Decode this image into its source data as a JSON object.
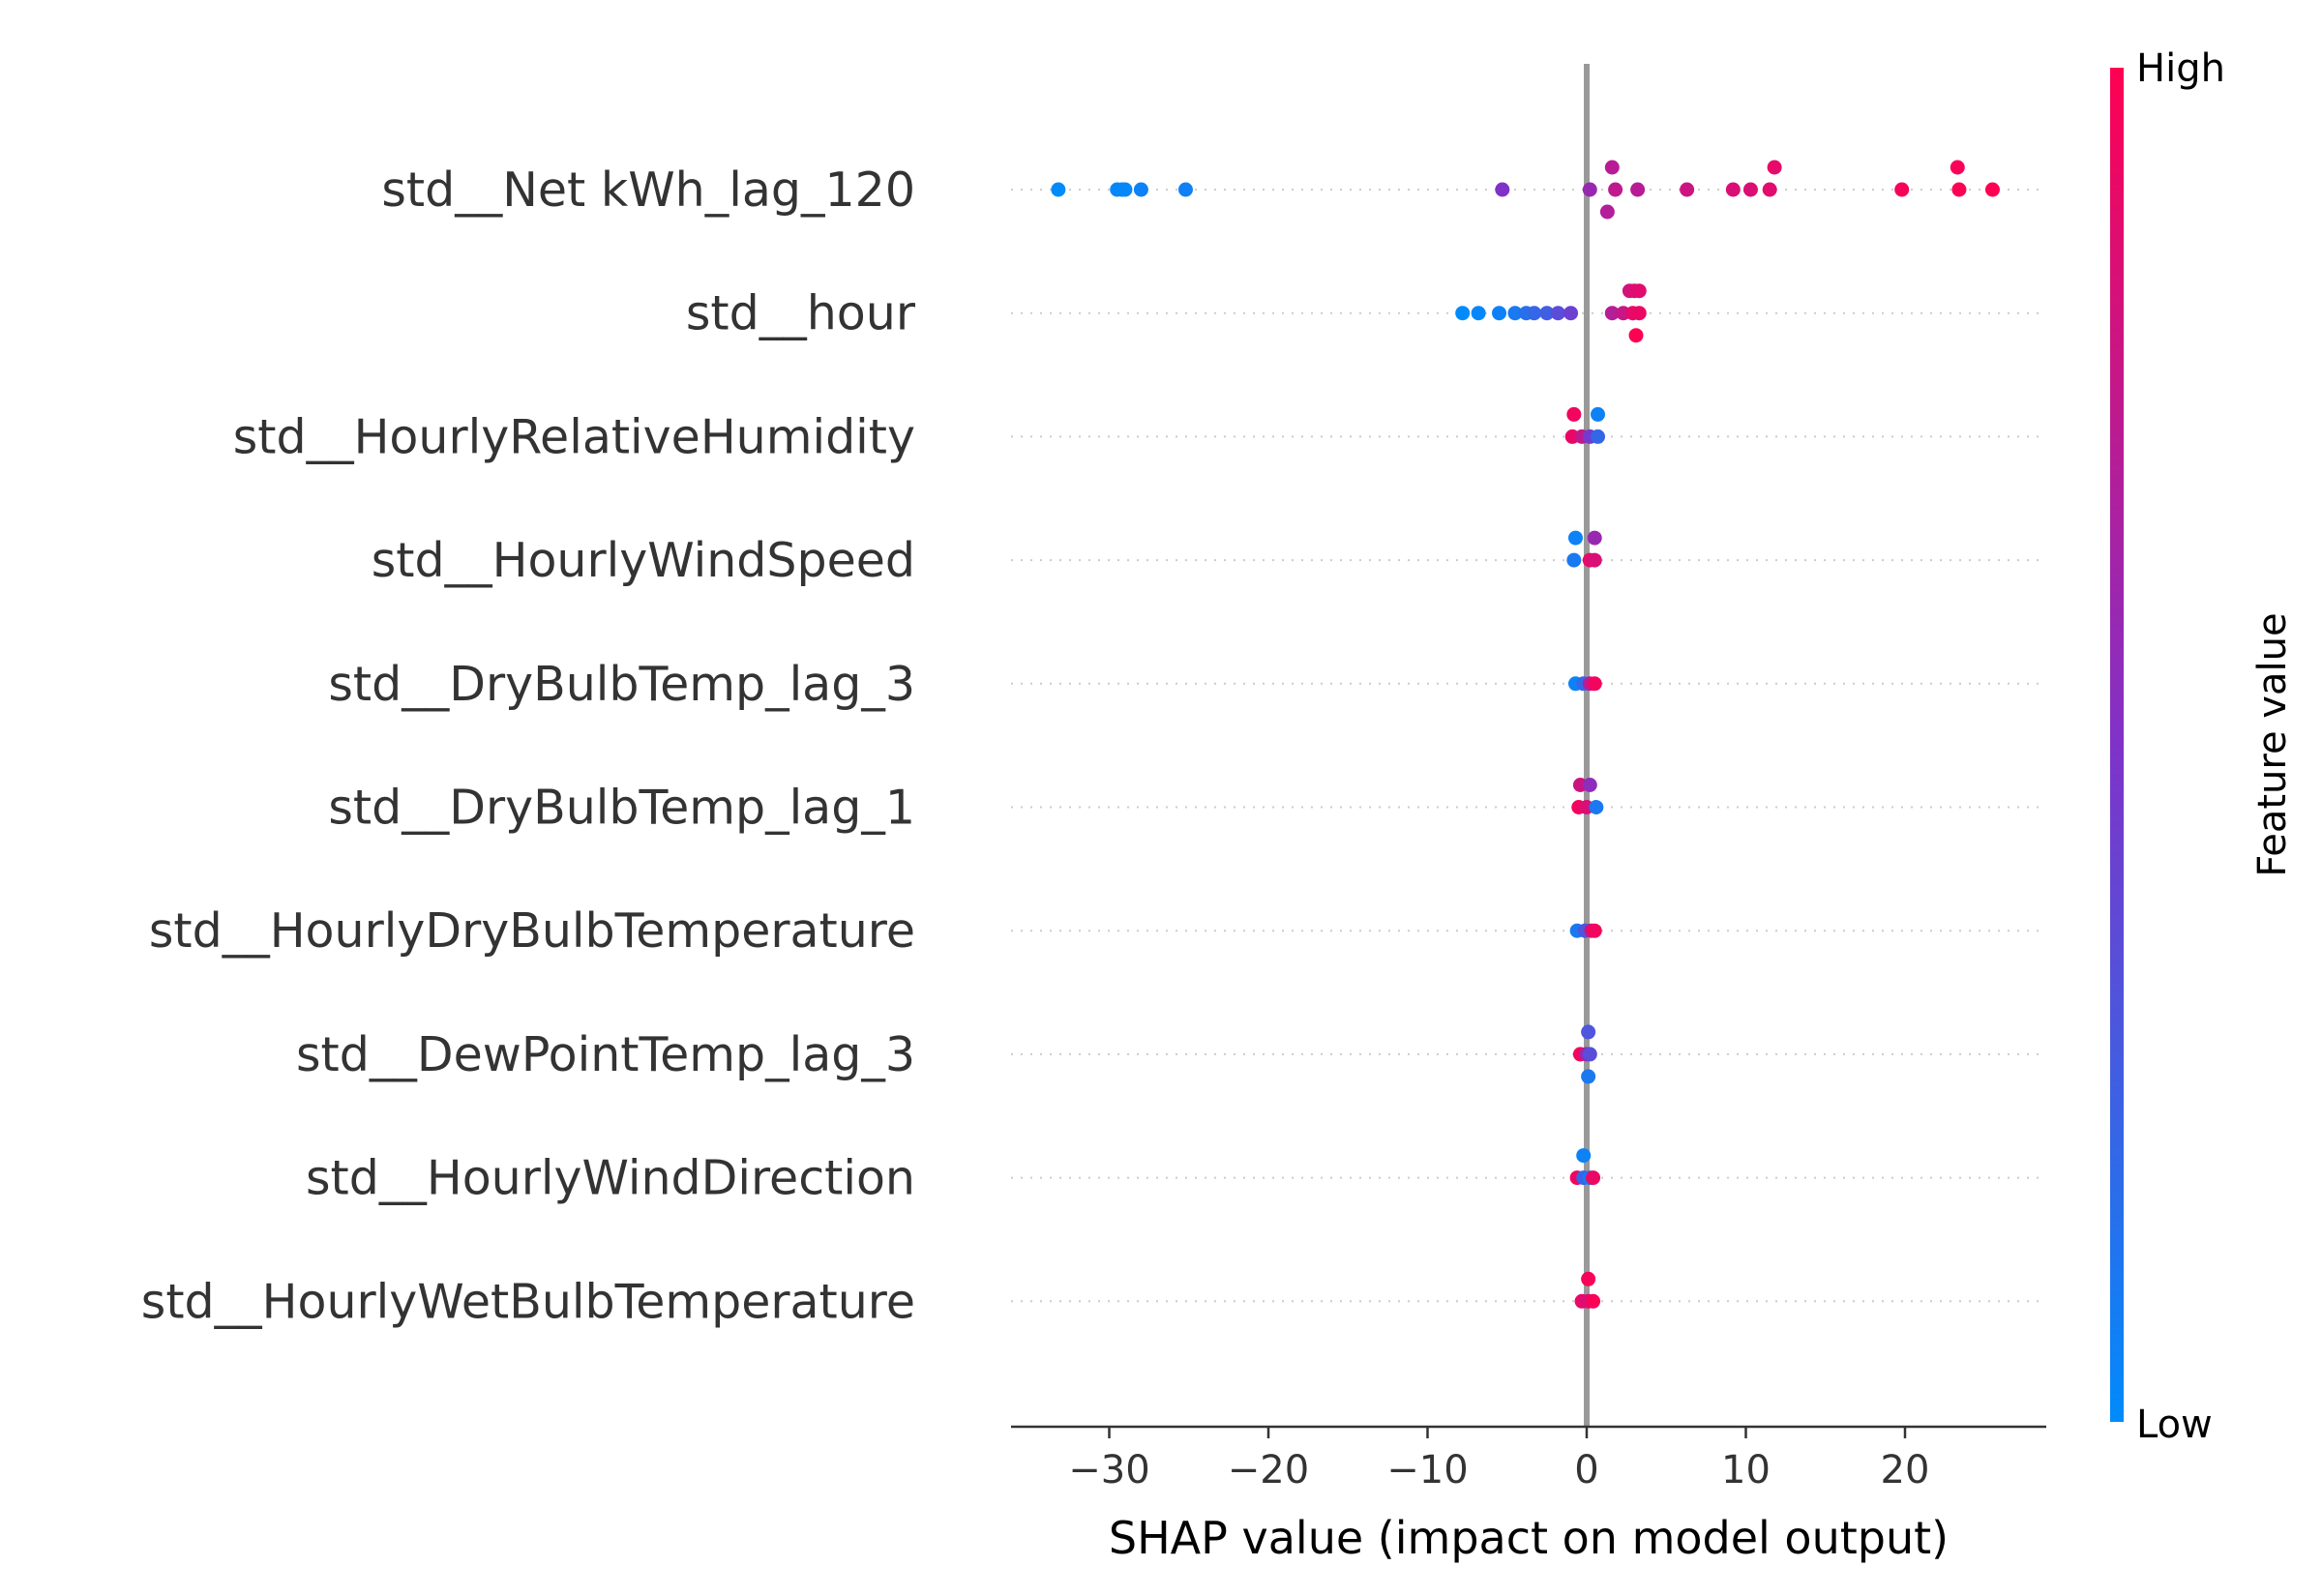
{
  "chart_data": {
    "type": "scatter",
    "subtype": "shap-beeswarm",
    "xlabel": "SHAP value (impact on model output)",
    "xticks": [
      -30,
      -20,
      -10,
      0,
      10,
      20
    ],
    "xlim": [
      -36,
      29
    ],
    "colorbar": {
      "title": "Feature value",
      "high_label": "High",
      "low_label": "Low",
      "low_color": "#008bfb",
      "mid_color": "#8032c8",
      "high_color": "#ff0052"
    },
    "features": [
      {
        "name": "std__Net kWh_lag_120",
        "points": [
          {
            "x": -33.2,
            "v": 0.0,
            "j": 0
          },
          {
            "x": -29.5,
            "v": 0.02,
            "j": 0
          },
          {
            "x": -29.2,
            "v": 0.03,
            "j": 0
          },
          {
            "x": -29.0,
            "v": 0.02,
            "j": 0
          },
          {
            "x": -28.0,
            "v": 0.05,
            "j": 0
          },
          {
            "x": -25.2,
            "v": 0.06,
            "j": 0
          },
          {
            "x": -5.3,
            "v": 0.5,
            "j": 0
          },
          {
            "x": 0.2,
            "v": 0.6,
            "j": 0
          },
          {
            "x": 1.6,
            "v": 0.72,
            "j": -1
          },
          {
            "x": 1.3,
            "v": 0.7,
            "j": 1
          },
          {
            "x": 1.8,
            "v": 0.75,
            "j": 0
          },
          {
            "x": 3.2,
            "v": 0.72,
            "j": 0
          },
          {
            "x": 6.3,
            "v": 0.8,
            "j": 0
          },
          {
            "x": 9.2,
            "v": 0.85,
            "j": 0
          },
          {
            "x": 10.3,
            "v": 0.86,
            "j": 0
          },
          {
            "x": 11.5,
            "v": 0.88,
            "j": 0
          },
          {
            "x": 11.8,
            "v": 0.9,
            "j": -1
          },
          {
            "x": 19.8,
            "v": 0.97,
            "j": 0
          },
          {
            "x": 23.3,
            "v": 0.98,
            "j": -1
          },
          {
            "x": 23.4,
            "v": 0.99,
            "j": 0
          },
          {
            "x": 25.5,
            "v": 1.0,
            "j": 0
          }
        ]
      },
      {
        "name": "std__hour",
        "points": [
          {
            "x": -7.8,
            "v": 0.0,
            "j": 0
          },
          {
            "x": -6.8,
            "v": 0.02,
            "j": 0
          },
          {
            "x": -5.5,
            "v": 0.05,
            "j": 0
          },
          {
            "x": -4.5,
            "v": 0.1,
            "j": 0
          },
          {
            "x": -3.8,
            "v": 0.15,
            "j": 0
          },
          {
            "x": -3.3,
            "v": 0.2,
            "j": 0
          },
          {
            "x": -2.5,
            "v": 0.25,
            "j": 0
          },
          {
            "x": -1.8,
            "v": 0.35,
            "j": 0
          },
          {
            "x": -1.0,
            "v": 0.42,
            "j": 0
          },
          {
            "x": 1.6,
            "v": 0.7,
            "j": 0
          },
          {
            "x": 2.3,
            "v": 0.78,
            "j": 0
          },
          {
            "x": 2.7,
            "v": 0.82,
            "j": -1
          },
          {
            "x": 3.0,
            "v": 0.85,
            "j": -1
          },
          {
            "x": 3.3,
            "v": 0.88,
            "j": -1
          },
          {
            "x": 2.9,
            "v": 0.9,
            "j": 0
          },
          {
            "x": 3.3,
            "v": 0.92,
            "j": 0
          },
          {
            "x": 3.1,
            "v": 1.0,
            "j": 1
          }
        ]
      },
      {
        "name": "std__HourlyRelativeHumidity",
        "points": [
          {
            "x": -0.8,
            "v": 0.95,
            "j": -1
          },
          {
            "x": 0.7,
            "v": 0.05,
            "j": -1
          },
          {
            "x": -0.9,
            "v": 0.92,
            "j": 0
          },
          {
            "x": -0.3,
            "v": 0.75,
            "j": 0
          },
          {
            "x": 0.2,
            "v": 0.45,
            "j": 0
          },
          {
            "x": 0.7,
            "v": 0.2,
            "j": 0
          }
        ]
      },
      {
        "name": "std__HourlyWindSpeed",
        "points": [
          {
            "x": -0.7,
            "v": 0.05,
            "j": -1
          },
          {
            "x": 0.5,
            "v": 0.6,
            "j": -1
          },
          {
            "x": -0.8,
            "v": 0.1,
            "j": 0
          },
          {
            "x": 0.2,
            "v": 0.9,
            "j": 0
          },
          {
            "x": 0.5,
            "v": 0.85,
            "j": 0
          }
        ]
      },
      {
        "name": "std__DryBulbTemp_lag_3",
        "points": [
          {
            "x": -0.7,
            "v": 0.05,
            "j": 0
          },
          {
            "x": -0.2,
            "v": 0.2,
            "j": 0
          },
          {
            "x": 0.2,
            "v": 0.7,
            "j": 0
          },
          {
            "x": 0.5,
            "v": 0.95,
            "j": 0
          }
        ]
      },
      {
        "name": "std__DryBulbTemp_lag_1",
        "points": [
          {
            "x": -0.4,
            "v": 0.8,
            "j": -1
          },
          {
            "x": 0.2,
            "v": 0.55,
            "j": -1
          },
          {
            "x": -0.5,
            "v": 0.95,
            "j": 0
          },
          {
            "x": 0.0,
            "v": 0.85,
            "j": 0
          },
          {
            "x": 0.6,
            "v": 0.1,
            "j": 0
          }
        ]
      },
      {
        "name": "std__HourlyDryBulbTemperature",
        "points": [
          {
            "x": -0.6,
            "v": 0.1,
            "j": 0
          },
          {
            "x": -0.1,
            "v": 0.3,
            "j": 0
          },
          {
            "x": 0.3,
            "v": 0.8,
            "j": 0
          },
          {
            "x": 0.5,
            "v": 0.95,
            "j": 0
          }
        ]
      },
      {
        "name": "std__DewPointTemp_lag_3",
        "points": [
          {
            "x": 0.1,
            "v": 0.3,
            "j": -1
          },
          {
            "x": -0.4,
            "v": 0.95,
            "j": 0
          },
          {
            "x": 0.0,
            "v": 0.6,
            "j": 0
          },
          {
            "x": 0.2,
            "v": 0.35,
            "j": 0
          },
          {
            "x": 0.1,
            "v": 0.1,
            "j": 1
          }
        ]
      },
      {
        "name": "std__HourlyWindDirection",
        "points": [
          {
            "x": -0.2,
            "v": 0.05,
            "j": -1
          },
          {
            "x": -0.6,
            "v": 0.95,
            "j": 0
          },
          {
            "x": -0.2,
            "v": 0.2,
            "j": 0
          },
          {
            "x": 0.2,
            "v": 0.1,
            "j": 0
          },
          {
            "x": 0.4,
            "v": 0.92,
            "j": 0
          }
        ]
      },
      {
        "name": "std__HourlyWetBulbTemperature",
        "points": [
          {
            "x": 0.1,
            "v": 0.97,
            "j": -1
          },
          {
            "x": -0.3,
            "v": 0.9,
            "j": 0
          },
          {
            "x": 0.1,
            "v": 0.85,
            "j": 0
          },
          {
            "x": 0.4,
            "v": 0.98,
            "j": 0
          }
        ]
      }
    ]
  }
}
